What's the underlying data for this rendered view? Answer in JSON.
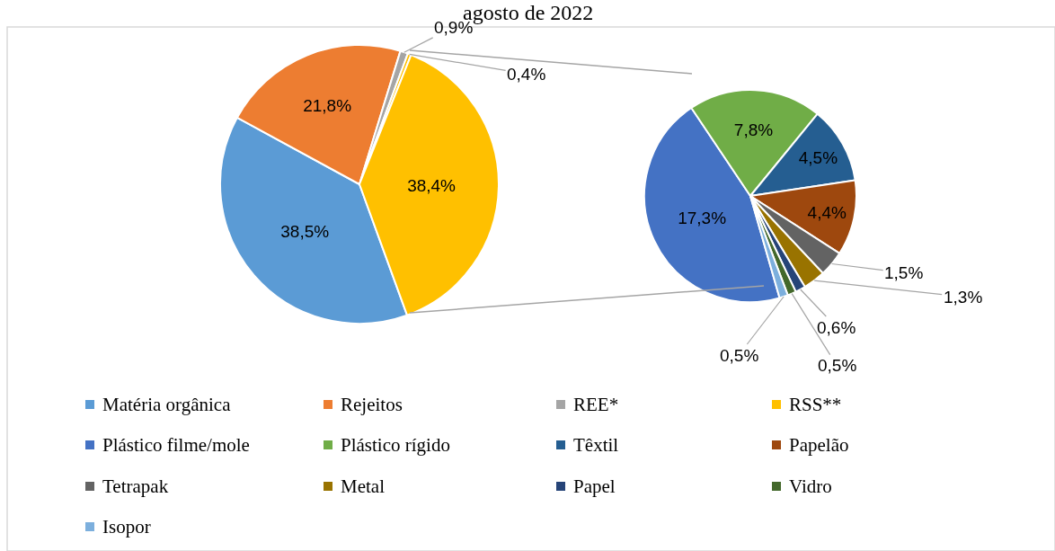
{
  "chart_data": [
    {
      "type": "pie",
      "title": "agosto de 2022",
      "legend": "bottom",
      "categories": [
        "Matéria orgânica",
        "Rejeitos",
        "REE*",
        "RSS**",
        null
      ],
      "values": [
        38.5,
        21.8,
        0.9,
        0.4,
        38.4
      ],
      "colors": [
        "#5b9bd5",
        "#ed7d31",
        "#a5a5a5",
        "#ffc000",
        "#ffc000"
      ],
      "value_labels": [
        "38,5%",
        "21,8%",
        "0,9%",
        "0,4%",
        "38,4%"
      ]
    },
    {
      "type": "pie",
      "legend": "bottom",
      "categories": [
        "Plástico filme/mole",
        "Plástico rígido",
        "Têxtil",
        "Papelão",
        "Tetrapak",
        "Metal",
        "Papel",
        "Vidro",
        "Isopor"
      ],
      "values": [
        17.3,
        7.8,
        4.5,
        4.4,
        1.5,
        1.3,
        0.6,
        0.5,
        0.5
      ],
      "colors": [
        "#4472c4",
        "#70ad47",
        "#255e91",
        "#9e480e",
        "#636363",
        "#997300",
        "#264478",
        "#43682b",
        "#7cafdd"
      ],
      "value_labels": [
        "17,3%",
        "7,8%",
        "4,5%",
        "4,4%",
        "1,5%",
        "1,3%",
        "0,6%",
        "0,5%",
        "0,5%"
      ]
    }
  ]
}
